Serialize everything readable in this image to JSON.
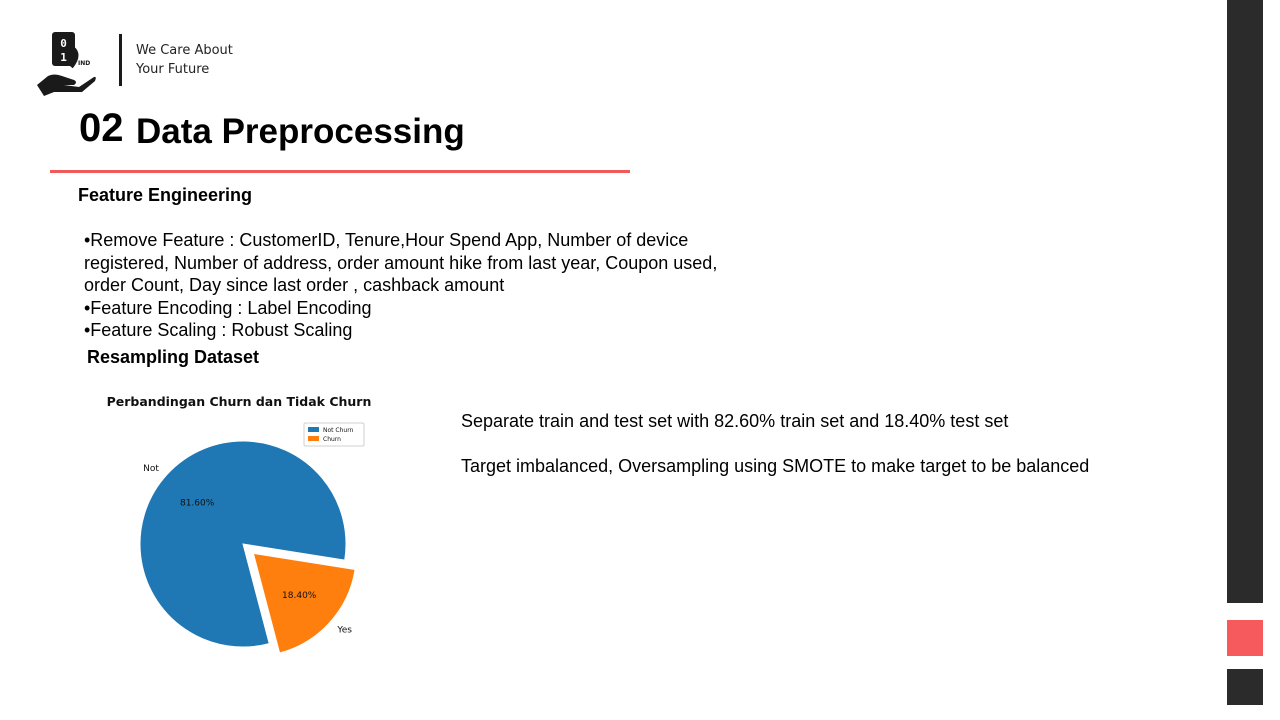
{
  "header": {
    "logo_label": "IND",
    "tagline_line1": "We Care About",
    "tagline_line2": "Your Future"
  },
  "slide": {
    "number": "02",
    "title": "Data Preprocessing",
    "accent_color": "#f05a5a"
  },
  "feature_engineering": {
    "heading": "Feature Engineering",
    "bullets": [
      "•Remove Feature   : CustomerID, Tenure,Hour Spend App, Number of device",
      "registered, Number of address, order amount hike from last year, Coupon used,",
      "order Count, Day since last order , cashback amount",
      "•Feature Encoding : Label  Encoding",
      "•Feature Scaling    : Robust Scaling"
    ]
  },
  "resampling": {
    "heading": "Resampling Dataset",
    "notes": [
      "Separate train and test set with  82.60% train set and 18.40% test set",
      "Target imbalanced, Oversampling using SMOTE to make target to be balanced"
    ]
  },
  "chart_data": {
    "type": "pie",
    "title": "Perbandingan Churn dan Tidak Churn",
    "categories": [
      "Not",
      "Yes"
    ],
    "values": [
      81.6,
      18.4
    ],
    "value_labels": [
      "81.60%",
      "18.40%"
    ],
    "legend": [
      "Not Churn",
      "Churn"
    ],
    "legend_position": "top-right",
    "colors": [
      "#1f77b4",
      "#ff7f0e"
    ],
    "exploded": [
      false,
      true
    ]
  }
}
